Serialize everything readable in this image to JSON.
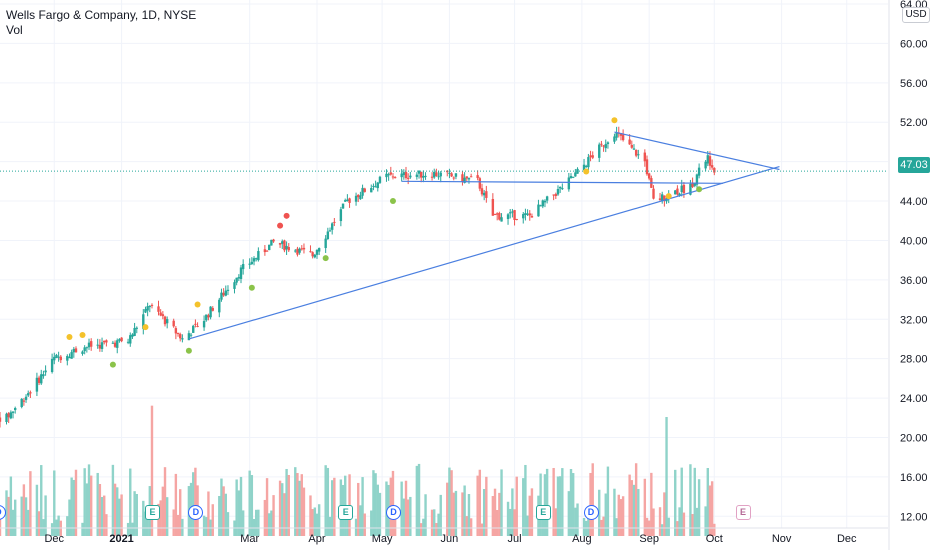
{
  "legend": {
    "symbol_line": "Wells Fargo & Company, 1D, NYSE",
    "volume_label": "Vol"
  },
  "currency": "USD",
  "last_price": "47.03",
  "colors": {
    "up": "#26a69a",
    "down": "#ef5350",
    "trendline": "#4a7fe0",
    "signal_yellow": "#f4c22b",
    "signal_green": "#8bc34a",
    "signal_red": "#ef5350",
    "price_line": "#26a69a"
  },
  "chart_data": {
    "type": "candlestick",
    "x_axis_labels": [
      "Dec",
      "2021",
      "Mar",
      "Apr",
      "May",
      "Jun",
      "Jul",
      "Aug",
      "Sep",
      "Oct",
      "Nov",
      "Dec"
    ],
    "y_axis_labels": [
      "64.00",
      "60.00",
      "56.00",
      "52.00",
      "48.00",
      "44.00",
      "40.00",
      "36.00",
      "32.00",
      "28.00",
      "24.00",
      "20.00",
      "16.00",
      "12.00"
    ],
    "price_range": [
      10,
      64
    ],
    "price_key_points": [
      {
        "date": "2020-11-09",
        "price": 22.0
      },
      {
        "date": "2020-11-20",
        "price": 24.8
      },
      {
        "date": "2020-12-01",
        "price": 28.0
      },
      {
        "date": "2020-12-15",
        "price": 29.2
      },
      {
        "date": "2021-01-04",
        "price": 29.8
      },
      {
        "date": "2021-01-14",
        "price": 33.5
      },
      {
        "date": "2021-01-29",
        "price": 30.0
      },
      {
        "date": "2021-02-08",
        "price": 32.0
      },
      {
        "date": "2021-02-25",
        "price": 37.0
      },
      {
        "date": "2021-03-12",
        "price": 39.8
      },
      {
        "date": "2021-03-30",
        "price": 38.5
      },
      {
        "date": "2021-04-15",
        "price": 44.0
      },
      {
        "date": "2021-05-03",
        "price": 46.5
      },
      {
        "date": "2021-05-25",
        "price": 46.8
      },
      {
        "date": "2021-06-14",
        "price": 46.0
      },
      {
        "date": "2021-06-21",
        "price": 42.5
      },
      {
        "date": "2021-07-08",
        "price": 42.5
      },
      {
        "date": "2021-07-26",
        "price": 46.0
      },
      {
        "date": "2021-08-16",
        "price": 51.0
      },
      {
        "date": "2021-08-30",
        "price": 48.0
      },
      {
        "date": "2021-09-03",
        "price": 44.0
      },
      {
        "date": "2021-09-20",
        "price": 45.5
      },
      {
        "date": "2021-09-28",
        "price": 48.5
      },
      {
        "date": "2021-10-01",
        "price": 47.03
      }
    ],
    "volume_range_millions": [
      10,
      22
    ],
    "volume_peaks_millions": [
      {
        "date": "2021-01-15",
        "volume": 21.5
      },
      {
        "date": "2021-09-09",
        "volume": 20.5
      },
      {
        "date": "2021-09-28",
        "volume": 16.0
      }
    ],
    "trendlines": [
      {
        "name": "support",
        "from": {
          "date": "2021-02-01",
          "price": 30.0
        },
        "to": {
          "date": "2021-10-31",
          "price": 47.5
        }
      },
      {
        "name": "resistance",
        "from": {
          "date": "2021-08-16",
          "price": 51.0
        },
        "to": {
          "date": "2021-10-31",
          "price": 47.2
        }
      },
      {
        "name": "horizontal",
        "from": {
          "date": "2021-05-10",
          "price": 46.0
        },
        "to": {
          "date": "2021-10-05",
          "price": 45.8
        }
      }
    ],
    "events": {
      "dividends": [
        "2020-11-05",
        "2021-02-04",
        "2021-05-06",
        "2021-08-05"
      ],
      "earnings": [
        "2021-01-15",
        "2021-04-14",
        "2021-07-14"
      ],
      "earnings_upcoming": [
        "2021-10-14"
      ]
    },
    "grid": true
  }
}
